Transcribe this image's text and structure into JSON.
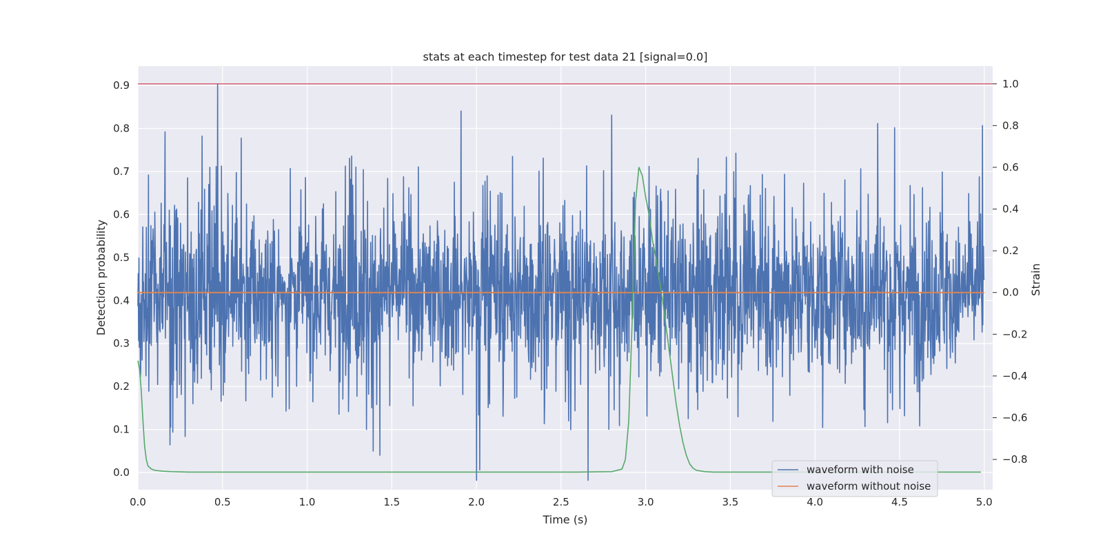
{
  "chart_data": {
    "type": "line",
    "title": "stats at each timestep for test data 21 [signal=0.0]",
    "xlabel": "Time (s)",
    "ylabel": "Detection probability",
    "ylabel_right": "Strain",
    "xlim": [
      0.0,
      5.05
    ],
    "ylim": [
      -0.04,
      0.945
    ],
    "ylim_right": [
      -0.945,
      1.085
    ],
    "x_ticks": [
      "0.0",
      "0.5",
      "1.0",
      "1.5",
      "2.0",
      "2.5",
      "3.0",
      "3.5",
      "4.0",
      "4.5",
      "5.0"
    ],
    "y_ticks": [
      "0.0",
      "0.1",
      "0.2",
      "0.3",
      "0.4",
      "0.5",
      "0.6",
      "0.7",
      "0.8",
      "0.9"
    ],
    "y_ticks_right": [
      "1.0",
      "0.8",
      "0.6",
      "0.4",
      "0.2",
      "0.0",
      "−0.2",
      "−0.4",
      "−0.6",
      "−0.8"
    ],
    "grid": true,
    "legend_position": "lower-right",
    "threshold": {
      "axis": "right",
      "value": 1.0,
      "color": "#d1495b"
    },
    "series": [
      {
        "name": "waveform with noise",
        "axis": "right",
        "color": "#4c72b0",
        "noise_std": 0.2,
        "n_points": 2400,
        "seed": 21,
        "spikes": [
          {
            "x": 0.47,
            "y": 1.0
          },
          {
            "x": 0.16,
            "y": 0.77
          },
          {
            "x": 0.38,
            "y": 0.75
          },
          {
            "x": 0.61,
            "y": 0.74
          },
          {
            "x": 1.91,
            "y": 0.87
          },
          {
            "x": 2.8,
            "y": 0.85
          },
          {
            "x": 4.37,
            "y": 0.81
          },
          {
            "x": 4.47,
            "y": 0.79
          },
          {
            "x": 4.99,
            "y": 0.8
          },
          {
            "x": 2.0,
            "y": -0.9
          },
          {
            "x": 2.66,
            "y": -0.9
          },
          {
            "x": 2.02,
            "y": -0.85
          },
          {
            "x": 1.39,
            "y": -0.76
          },
          {
            "x": 1.43,
            "y": -0.78
          },
          {
            "x": 0.19,
            "y": -0.73
          },
          {
            "x": 0.28,
            "y": -0.69
          }
        ]
      },
      {
        "name": "waveform without noise",
        "axis": "right",
        "color": "#dd8452",
        "x": [
          0.0,
          5.0
        ],
        "y": [
          0.0,
          0.0
        ]
      },
      {
        "name": "",
        "axis": "left",
        "color": "#55a868",
        "x": [
          0.0,
          0.01,
          0.02,
          0.03,
          0.04,
          0.05,
          0.06,
          0.08,
          0.1,
          0.15,
          0.2,
          0.3,
          0.5,
          1.0,
          2.0,
          2.6,
          2.8,
          2.86,
          2.88,
          2.9,
          2.92,
          2.94,
          2.96,
          2.98,
          3.0,
          3.02,
          3.04,
          3.06,
          3.08,
          3.1,
          3.12,
          3.14,
          3.16,
          3.18,
          3.2,
          3.22,
          3.24,
          3.26,
          3.28,
          3.3,
          3.35,
          3.4,
          3.5,
          3.6,
          3.8,
          4.0,
          4.5,
          4.98
        ],
        "y": [
          0.26,
          0.24,
          0.19,
          0.12,
          0.06,
          0.03,
          0.015,
          0.008,
          0.005,
          0.003,
          0.002,
          0.001,
          0.001,
          0.001,
          0.001,
          0.001,
          0.002,
          0.008,
          0.03,
          0.12,
          0.35,
          0.63,
          0.71,
          0.69,
          0.64,
          0.6,
          0.54,
          0.5,
          0.45,
          0.4,
          0.34,
          0.28,
          0.22,
          0.16,
          0.11,
          0.07,
          0.04,
          0.02,
          0.01,
          0.005,
          0.002,
          0.001,
          0.001,
          0.001,
          0.001,
          0.001,
          0.001,
          0.001
        ]
      }
    ]
  }
}
